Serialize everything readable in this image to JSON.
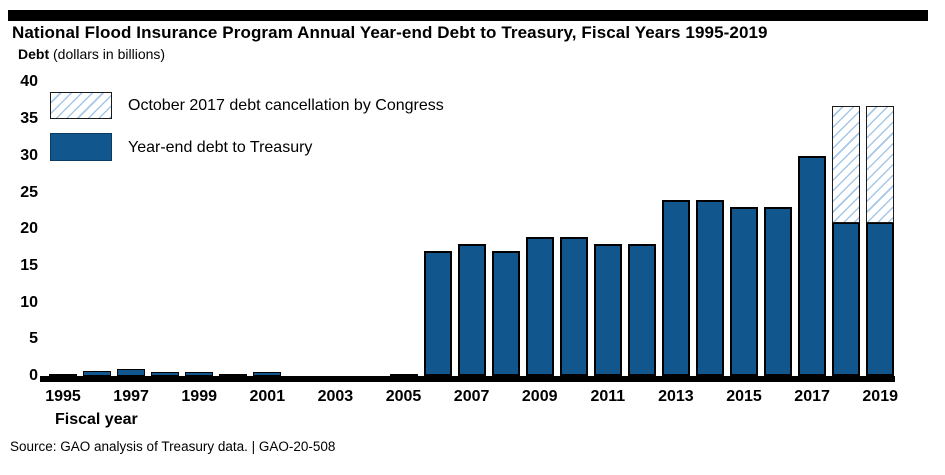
{
  "header": {
    "title": "National Flood Insurance Program Annual Year-end Debt to Treasury, Fiscal Years 1995-2019",
    "y_axis_title_bold": "Debt",
    "y_axis_title_units": " (dollars in billions)"
  },
  "legend": {
    "items": [
      {
        "swatch": "hatched",
        "label": "October 2017 debt cancellation by Congress"
      },
      {
        "swatch": "solid",
        "label": "Year-end debt to Treasury"
      }
    ]
  },
  "x_axis_label": "Fiscal year",
  "source_line": "Source: GAO analysis of Treasury data.  |  GAO-20-508",
  "colors": {
    "bar_fill": "#11568C",
    "bar_border": "#000000",
    "hatch_line": "#A6C7E8",
    "hatch_bg": "#FFFFFF",
    "top_rule": "#000000"
  },
  "chart_data": {
    "type": "bar",
    "stacked": true,
    "title": "National Flood Insurance Program Annual Year-end Debt to Treasury, Fiscal Years 1995-2019",
    "xlabel": "Fiscal year",
    "ylabel": "Debt (dollars in billions)",
    "ylim": [
      0,
      40
    ],
    "grid": false,
    "legend_position": "top-left",
    "y_ticks": [
      40,
      35,
      30,
      25,
      20,
      15,
      10,
      5,
      0
    ],
    "x_tick_labels": [
      "1995",
      "1997",
      "1999",
      "2001",
      "2003",
      "2005",
      "2007",
      "2009",
      "2011",
      "2013",
      "2015",
      "2017",
      "2019"
    ],
    "categories": [
      1995,
      1996,
      1997,
      1998,
      1999,
      2000,
      2001,
      2002,
      2003,
      2004,
      2005,
      2006,
      2007,
      2008,
      2009,
      2010,
      2011,
      2012,
      2013,
      2014,
      2015,
      2016,
      2017,
      2018,
      2019
    ],
    "series": [
      {
        "name": "Year-end debt to Treasury",
        "style": "solid-blue",
        "values": [
          0.2,
          0.7,
          1.0,
          0.5,
          0.5,
          0.3,
          0.6,
          0,
          0,
          0,
          0.2,
          17,
          18,
          17,
          19,
          19,
          18,
          18,
          24,
          24,
          23,
          23,
          30,
          21,
          21
        ]
      },
      {
        "name": "October 2017 debt cancellation by Congress",
        "style": "hatched",
        "values": [
          0,
          0,
          0,
          0,
          0,
          0,
          0,
          0,
          0,
          0,
          0,
          0,
          0,
          0,
          0,
          0,
          0,
          0,
          0,
          0,
          0,
          0,
          0,
          16,
          16
        ]
      }
    ]
  }
}
